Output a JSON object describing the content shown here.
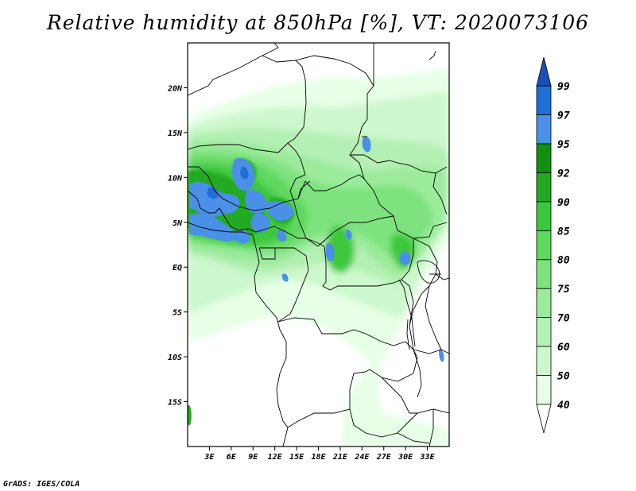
{
  "title": "Relative humidity at 850hPa [%], VT: 2020073106",
  "credit": "GrADS: IGES/COLA",
  "map": {
    "lon_range": [
      0,
      36
    ],
    "lat_range": [
      -20,
      25
    ],
    "lat_ticks": [
      {
        "value": 20,
        "label": "20N"
      },
      {
        "value": 15,
        "label": "15N"
      },
      {
        "value": 10,
        "label": "10N"
      },
      {
        "value": 5,
        "label": "5N"
      },
      {
        "value": 0,
        "label": "EQ"
      },
      {
        "value": -5,
        "label": "5S"
      },
      {
        "value": -10,
        "label": "10S"
      },
      {
        "value": -15,
        "label": "15S"
      }
    ],
    "lon_ticks": [
      {
        "value": 3,
        "label": "3E"
      },
      {
        "value": 6,
        "label": "6E"
      },
      {
        "value": 9,
        "label": "9E"
      },
      {
        "value": 12,
        "label": "12E"
      },
      {
        "value": 15,
        "label": "15E"
      },
      {
        "value": 18,
        "label": "18E"
      },
      {
        "value": 21,
        "label": "21E"
      },
      {
        "value": 24,
        "label": "24E"
      },
      {
        "value": 27,
        "label": "27E"
      },
      {
        "value": 30,
        "label": "30E"
      },
      {
        "value": 33,
        "label": "33E"
      }
    ]
  },
  "colorbar": {
    "levels": [
      "40",
      "50",
      "60",
      "70",
      "75",
      "80",
      "85",
      "90",
      "92",
      "95",
      "97",
      "99"
    ],
    "colors": [
      "#ffffff",
      "#e6ffe6",
      "#cdf8cd",
      "#b4f0b4",
      "#9beb9b",
      "#7ee37e",
      "#5ed85e",
      "#3cc83c",
      "#22aa22",
      "#119011",
      "#4a90e8",
      "#1e6ed8",
      "#1a4fb4"
    ]
  }
}
